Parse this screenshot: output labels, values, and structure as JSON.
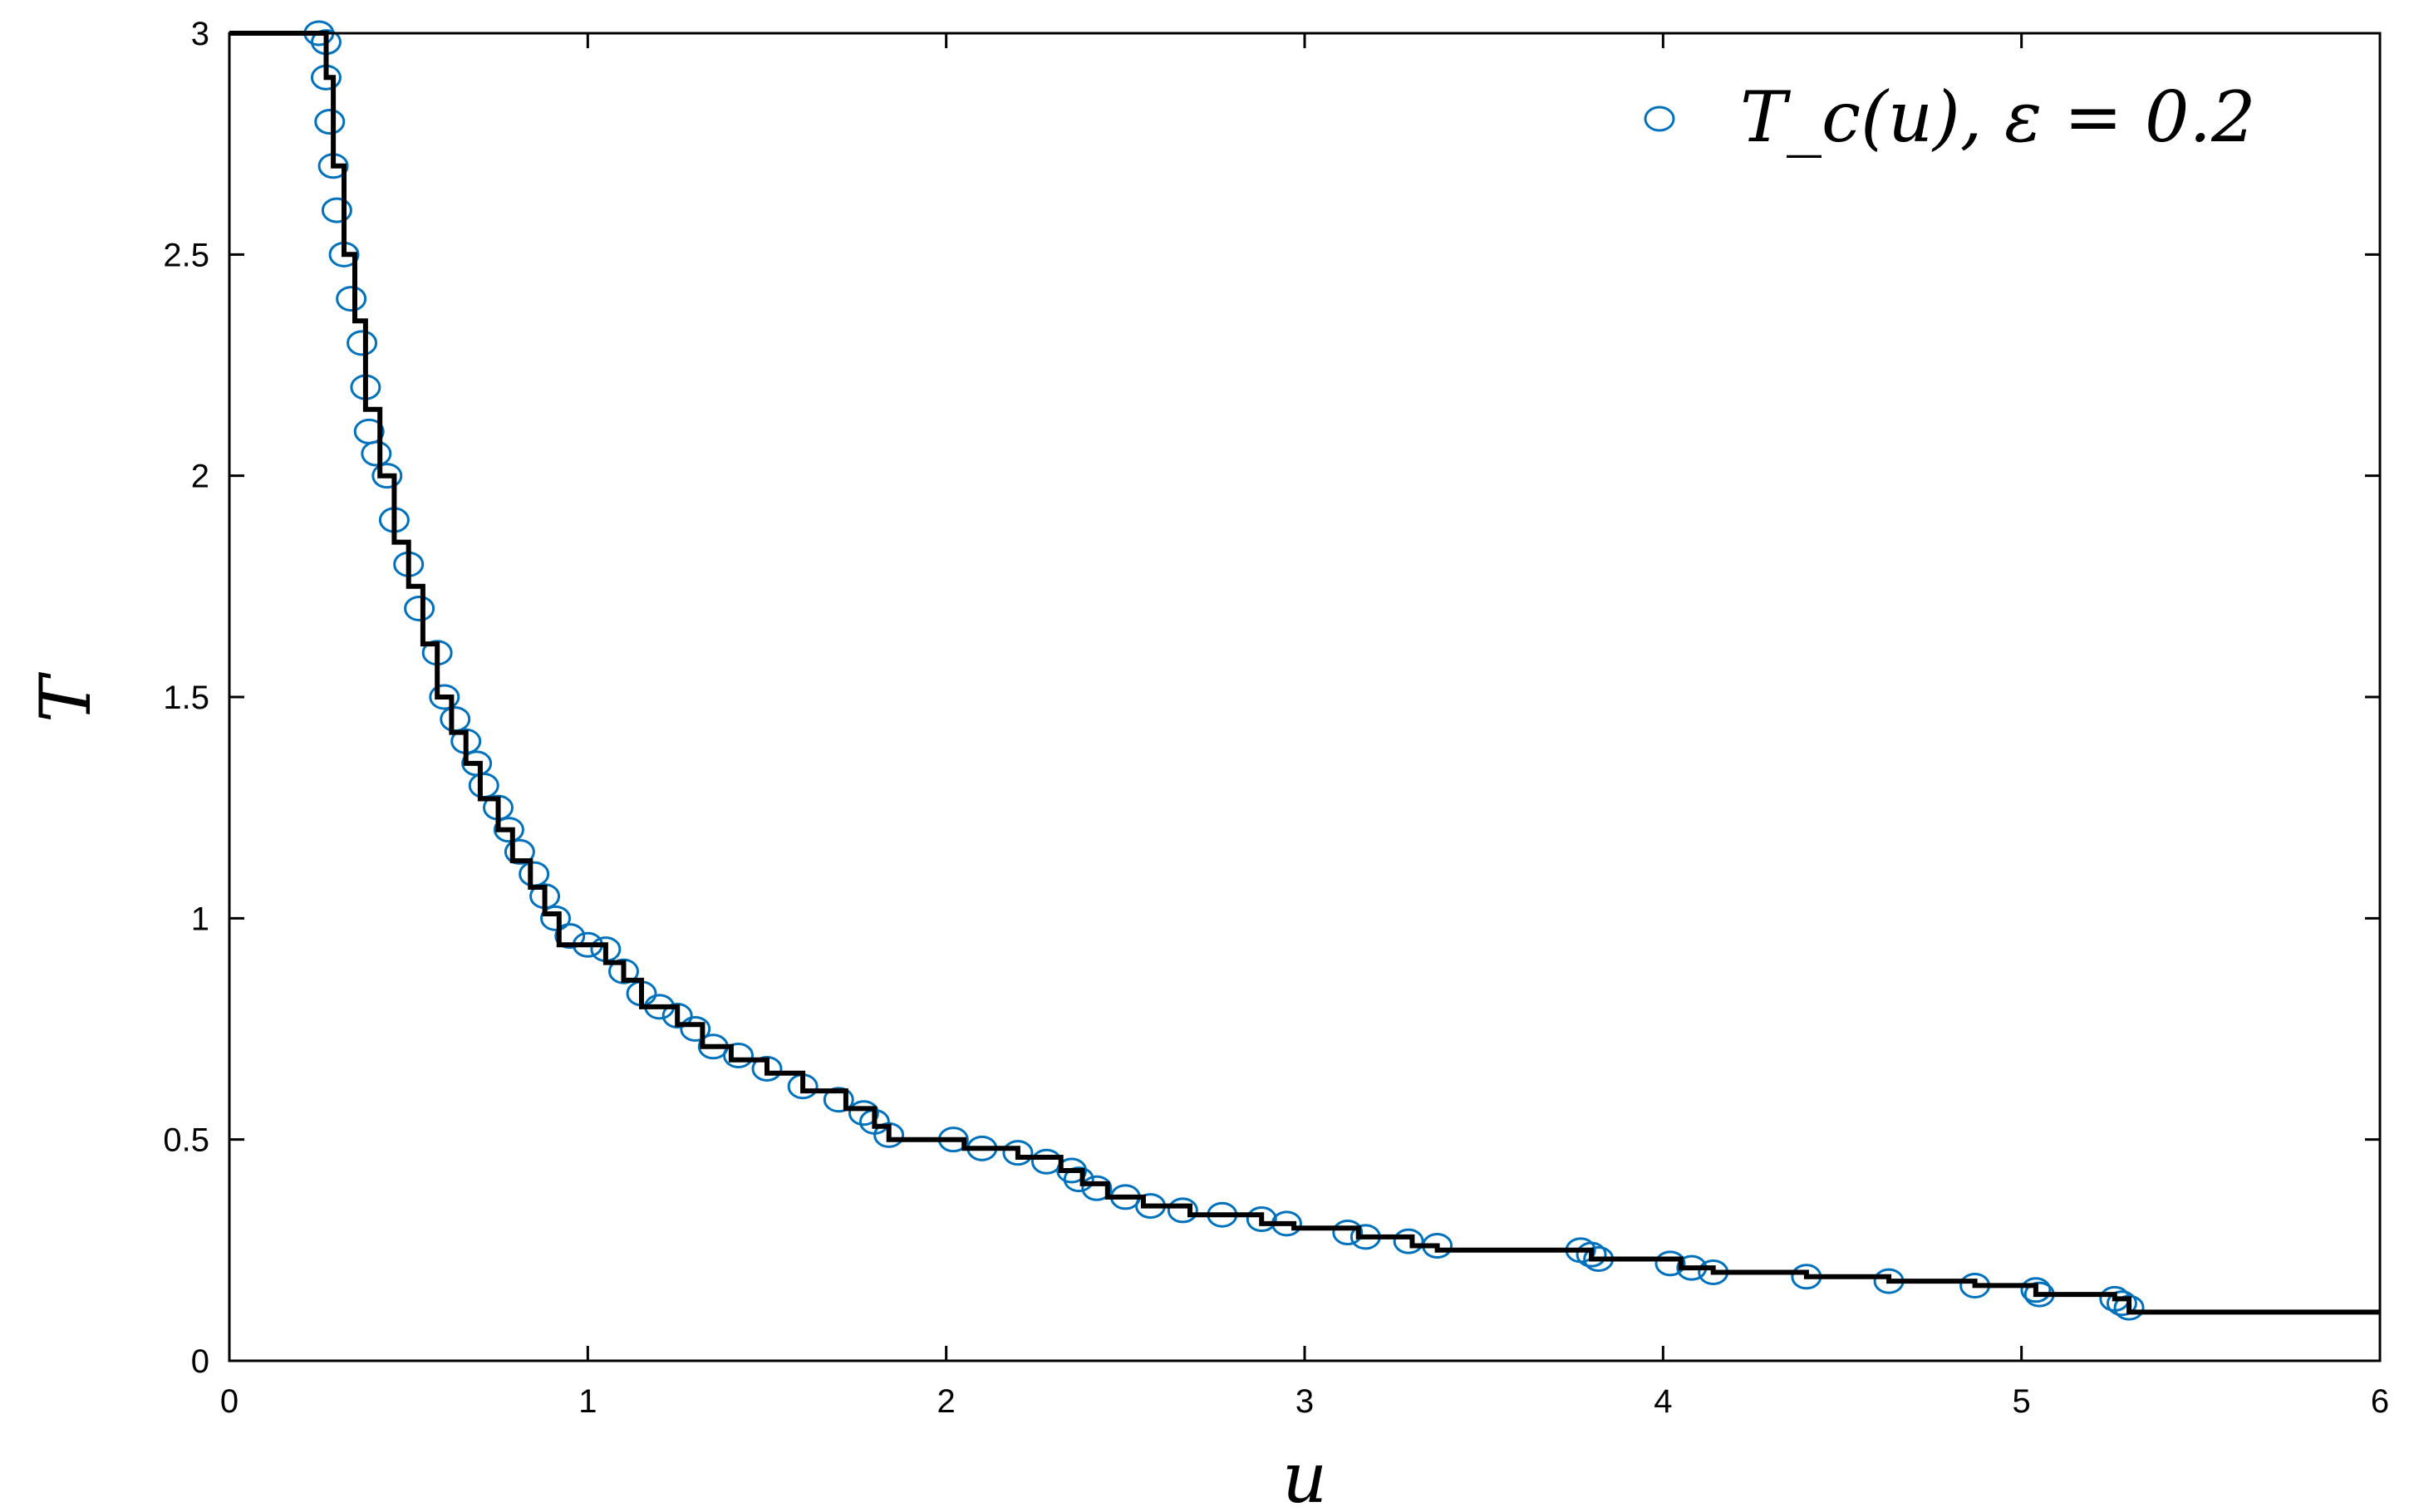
{
  "chart_data": {
    "type": "scatter",
    "xlabel": "u",
    "ylabel": "T",
    "xlim": [
      0,
      6
    ],
    "ylim": [
      0,
      3
    ],
    "xticks": [
      "0",
      "1",
      "2",
      "3",
      "4",
      "5",
      "6"
    ],
    "yticks": [
      "0",
      "0.5",
      "1",
      "1.5",
      "2",
      "2.5",
      "3"
    ],
    "grid": false,
    "legend_position": "top-right",
    "colors": {
      "markers": "#0072BD",
      "line": "#000000"
    },
    "series": [
      {
        "name": "T_c(u), ε = 0.2",
        "style": "open-circle",
        "points": [
          [
            0.25,
            3.0
          ],
          [
            0.27,
            2.98
          ],
          [
            0.27,
            2.9
          ],
          [
            0.28,
            2.8
          ],
          [
            0.29,
            2.7
          ],
          [
            0.3,
            2.6
          ],
          [
            0.32,
            2.5
          ],
          [
            0.34,
            2.4
          ],
          [
            0.37,
            2.3
          ],
          [
            0.38,
            2.2
          ],
          [
            0.39,
            2.1
          ],
          [
            0.41,
            2.05
          ],
          [
            0.44,
            2.0
          ],
          [
            0.46,
            1.9
          ],
          [
            0.5,
            1.8
          ],
          [
            0.53,
            1.7
          ],
          [
            0.58,
            1.6
          ],
          [
            0.6,
            1.5
          ],
          [
            0.63,
            1.45
          ],
          [
            0.66,
            1.4
          ],
          [
            0.69,
            1.35
          ],
          [
            0.71,
            1.3
          ],
          [
            0.75,
            1.25
          ],
          [
            0.78,
            1.2
          ],
          [
            0.81,
            1.15
          ],
          [
            0.85,
            1.1
          ],
          [
            0.88,
            1.05
          ],
          [
            0.91,
            1.0
          ],
          [
            0.95,
            0.96
          ],
          [
            1.0,
            0.94
          ],
          [
            1.05,
            0.93
          ],
          [
            1.1,
            0.88
          ],
          [
            1.15,
            0.83
          ],
          [
            1.2,
            0.8
          ],
          [
            1.25,
            0.78
          ],
          [
            1.3,
            0.75
          ],
          [
            1.35,
            0.71
          ],
          [
            1.42,
            0.69
          ],
          [
            1.5,
            0.66
          ],
          [
            1.6,
            0.62
          ],
          [
            1.7,
            0.59
          ],
          [
            1.77,
            0.56
          ],
          [
            1.8,
            0.54
          ],
          [
            1.84,
            0.51
          ],
          [
            2.02,
            0.5
          ],
          [
            2.1,
            0.48
          ],
          [
            2.2,
            0.47
          ],
          [
            2.28,
            0.45
          ],
          [
            2.35,
            0.43
          ],
          [
            2.37,
            0.41
          ],
          [
            2.42,
            0.39
          ],
          [
            2.5,
            0.37
          ],
          [
            2.57,
            0.35
          ],
          [
            2.66,
            0.34
          ],
          [
            2.77,
            0.33
          ],
          [
            2.88,
            0.32
          ],
          [
            2.95,
            0.31
          ],
          [
            3.12,
            0.29
          ],
          [
            3.17,
            0.28
          ],
          [
            3.29,
            0.27
          ],
          [
            3.37,
            0.26
          ],
          [
            3.77,
            0.25
          ],
          [
            3.8,
            0.24
          ],
          [
            3.82,
            0.23
          ],
          [
            4.02,
            0.22
          ],
          [
            4.08,
            0.21
          ],
          [
            4.14,
            0.2
          ],
          [
            4.4,
            0.19
          ],
          [
            4.63,
            0.18
          ],
          [
            4.87,
            0.17
          ],
          [
            5.04,
            0.16
          ],
          [
            5.05,
            0.15
          ],
          [
            5.26,
            0.14
          ],
          [
            5.28,
            0.13
          ],
          [
            5.3,
            0.12
          ]
        ]
      },
      {
        "name": "",
        "style": "step-line",
        "points": [
          [
            0,
            3.0
          ],
          [
            0.27,
            3.0
          ],
          [
            0.27,
            2.9
          ],
          [
            0.29,
            2.9
          ],
          [
            0.29,
            2.7
          ],
          [
            0.32,
            2.7
          ],
          [
            0.32,
            2.5
          ],
          [
            0.35,
            2.5
          ],
          [
            0.35,
            2.35
          ],
          [
            0.38,
            2.35
          ],
          [
            0.38,
            2.15
          ],
          [
            0.42,
            2.15
          ],
          [
            0.42,
            2.0
          ],
          [
            0.46,
            2.0
          ],
          [
            0.46,
            1.85
          ],
          [
            0.5,
            1.85
          ],
          [
            0.5,
            1.75
          ],
          [
            0.54,
            1.75
          ],
          [
            0.54,
            1.62
          ],
          [
            0.58,
            1.62
          ],
          [
            0.58,
            1.5
          ],
          [
            0.62,
            1.5
          ],
          [
            0.62,
            1.42
          ],
          [
            0.66,
            1.42
          ],
          [
            0.66,
            1.35
          ],
          [
            0.7,
            1.35
          ],
          [
            0.7,
            1.27
          ],
          [
            0.75,
            1.27
          ],
          [
            0.75,
            1.2
          ],
          [
            0.79,
            1.2
          ],
          [
            0.79,
            1.13
          ],
          [
            0.84,
            1.13
          ],
          [
            0.84,
            1.07
          ],
          [
            0.88,
            1.07
          ],
          [
            0.88,
            1.01
          ],
          [
            0.92,
            1.01
          ],
          [
            0.92,
            0.94
          ],
          [
            1.05,
            0.94
          ],
          [
            1.05,
            0.9
          ],
          [
            1.1,
            0.9
          ],
          [
            1.1,
            0.86
          ],
          [
            1.15,
            0.86
          ],
          [
            1.15,
            0.8
          ],
          [
            1.25,
            0.8
          ],
          [
            1.25,
            0.76
          ],
          [
            1.32,
            0.76
          ],
          [
            1.32,
            0.71
          ],
          [
            1.4,
            0.71
          ],
          [
            1.4,
            0.68
          ],
          [
            1.5,
            0.68
          ],
          [
            1.5,
            0.65
          ],
          [
            1.6,
            0.65
          ],
          [
            1.6,
            0.61
          ],
          [
            1.72,
            0.61
          ],
          [
            1.72,
            0.57
          ],
          [
            1.8,
            0.57
          ],
          [
            1.8,
            0.53
          ],
          [
            1.84,
            0.53
          ],
          [
            1.84,
            0.5
          ],
          [
            2.05,
            0.5
          ],
          [
            2.05,
            0.48
          ],
          [
            2.2,
            0.48
          ],
          [
            2.2,
            0.46
          ],
          [
            2.32,
            0.46
          ],
          [
            2.32,
            0.43
          ],
          [
            2.38,
            0.43
          ],
          [
            2.38,
            0.4
          ],
          [
            2.45,
            0.4
          ],
          [
            2.45,
            0.37
          ],
          [
            2.55,
            0.37
          ],
          [
            2.55,
            0.35
          ],
          [
            2.68,
            0.35
          ],
          [
            2.68,
            0.33
          ],
          [
            2.88,
            0.33
          ],
          [
            2.88,
            0.31
          ],
          [
            2.97,
            0.31
          ],
          [
            2.97,
            0.3
          ],
          [
            3.15,
            0.3
          ],
          [
            3.15,
            0.28
          ],
          [
            3.3,
            0.28
          ],
          [
            3.3,
            0.26
          ],
          [
            3.37,
            0.26
          ],
          [
            3.37,
            0.25
          ],
          [
            3.8,
            0.25
          ],
          [
            3.8,
            0.23
          ],
          [
            4.05,
            0.23
          ],
          [
            4.05,
            0.21
          ],
          [
            4.14,
            0.21
          ],
          [
            4.14,
            0.2
          ],
          [
            4.4,
            0.2
          ],
          [
            4.4,
            0.19
          ],
          [
            4.63,
            0.19
          ],
          [
            4.63,
            0.18
          ],
          [
            4.87,
            0.18
          ],
          [
            4.87,
            0.17
          ],
          [
            5.04,
            0.17
          ],
          [
            5.04,
            0.15
          ],
          [
            5.26,
            0.15
          ],
          [
            5.26,
            0.14
          ],
          [
            5.3,
            0.14
          ],
          [
            5.3,
            0.11
          ],
          [
            6.0,
            0.11
          ]
        ]
      }
    ]
  }
}
